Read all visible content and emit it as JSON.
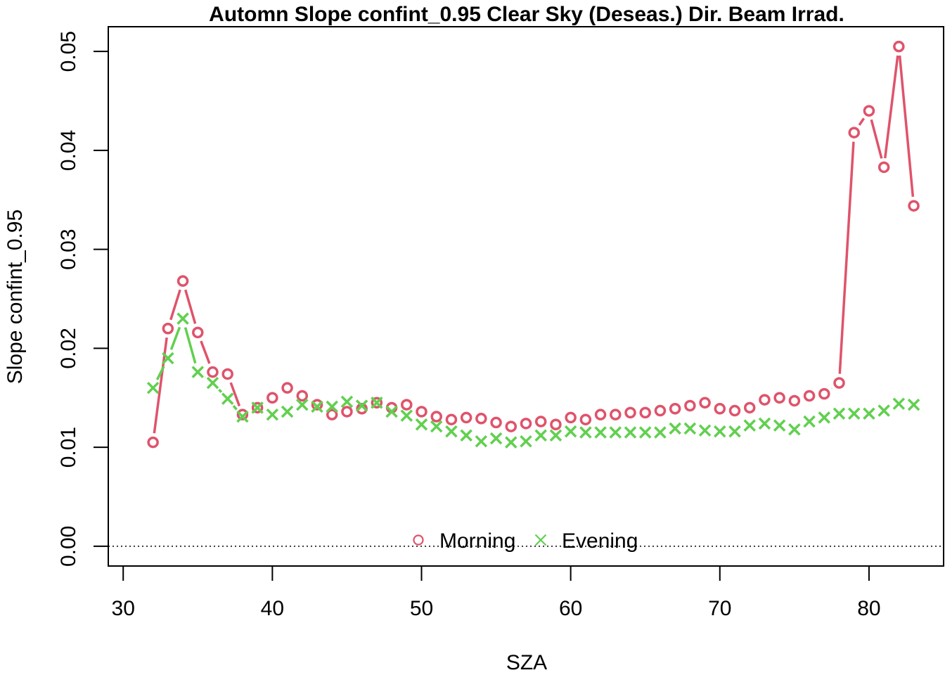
{
  "chart_data": {
    "type": "line",
    "title": "Automn Slope confint_0.95 Clear Sky (Deseas.) Dir. Beam Irrad.",
    "xlabel": "SZA",
    "ylabel": "Slope confint_0.95",
    "xlim": [
      29,
      85
    ],
    "ylim": [
      -0.002,
      0.0525
    ],
    "xticks": [
      30,
      40,
      50,
      60,
      70,
      80
    ],
    "yticks": [
      0.0,
      0.01,
      0.02,
      0.03,
      0.04,
      0.05
    ],
    "xtick_labels": [
      "30",
      "40",
      "50",
      "60",
      "70",
      "80"
    ],
    "ytick_labels": [
      "0.00",
      "0.01",
      "0.02",
      "0.03",
      "0.04",
      "0.05"
    ],
    "reference_line": {
      "y": 0,
      "style": "dotted",
      "color": "#000000"
    },
    "legend": {
      "position": "bottom-center",
      "entries": [
        "Morning",
        "Evening"
      ]
    },
    "x": [
      32,
      33,
      34,
      35,
      36,
      37,
      38,
      39,
      40,
      41,
      42,
      43,
      44,
      45,
      46,
      47,
      48,
      49,
      50,
      51,
      52,
      53,
      54,
      55,
      56,
      57,
      58,
      59,
      60,
      61,
      62,
      63,
      64,
      65,
      66,
      67,
      68,
      69,
      70,
      71,
      72,
      73,
      74,
      75,
      76,
      77,
      78,
      79,
      80,
      81,
      82,
      83
    ],
    "series": [
      {
        "name": "Morning",
        "marker": "circle",
        "color": "#DF536B",
        "values": [
          0.0105,
          0.022,
          0.0268,
          0.0216,
          0.0176,
          0.0174,
          0.0133,
          0.014,
          0.015,
          0.016,
          0.0152,
          0.0143,
          0.0133,
          0.0136,
          0.0139,
          0.0145,
          0.014,
          0.0143,
          0.0136,
          0.0131,
          0.0128,
          0.013,
          0.0129,
          0.0125,
          0.0121,
          0.0124,
          0.0126,
          0.0123,
          0.013,
          0.0128,
          0.0133,
          0.0133,
          0.0135,
          0.0135,
          0.0137,
          0.0139,
          0.0142,
          0.0145,
          0.0139,
          0.0137,
          0.014,
          0.0148,
          0.015,
          0.0147,
          0.0152,
          0.0154,
          0.0165,
          0.0418,
          0.044,
          0.0383,
          0.0505,
          0.0344
        ]
      },
      {
        "name": "Evening",
        "marker": "x",
        "color": "#61D04F",
        "values": [
          0.016,
          0.019,
          0.023,
          0.0176,
          0.0165,
          0.0149,
          0.0131,
          0.014,
          0.0133,
          0.0136,
          0.0143,
          0.0141,
          0.0141,
          0.0146,
          0.0142,
          0.0145,
          0.0136,
          0.0132,
          0.0123,
          0.0121,
          0.0116,
          0.0112,
          0.0106,
          0.0109,
          0.0105,
          0.0106,
          0.0112,
          0.0112,
          0.0116,
          0.0115,
          0.0115,
          0.0115,
          0.0115,
          0.0115,
          0.0115,
          0.0119,
          0.0119,
          0.0117,
          0.0116,
          0.0116,
          0.0122,
          0.0124,
          0.0122,
          0.0118,
          0.0126,
          0.013,
          0.0134,
          0.0134,
          0.0134,
          0.0137,
          0.0144,
          0.0143
        ]
      }
    ]
  }
}
